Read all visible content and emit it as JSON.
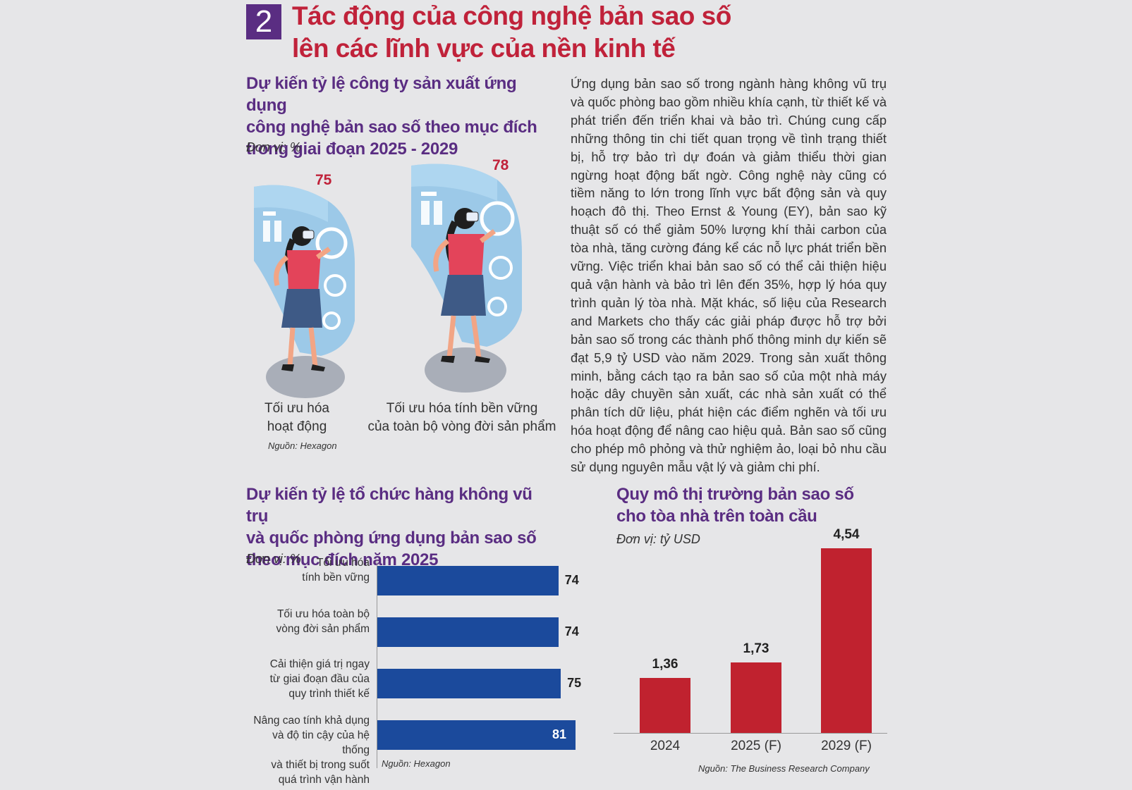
{
  "header": {
    "section_number": "2",
    "title": "Tác động của công nghệ bản sao số\nlên các lĩnh vực của nền kinh tế"
  },
  "figure_one": {
    "title": "Dự kiến tỷ lệ công ty sản xuất ứng dụng\ncông nghệ bản sao số theo mục đích\ntrong giai đoạn 2025 - 2029",
    "unit": "Đơn vị: %",
    "items": [
      {
        "value": "75",
        "label": "Tối ưu hóa\nhoạt động"
      },
      {
        "value": "78",
        "label": "Tối ưu hóa tính bền vững\ncủa toàn bộ vòng đời sản phẩm"
      }
    ],
    "source": "Nguồn: Hexagon"
  },
  "article": {
    "text": "Ứng dụng bản sao số trong ngành hàng không vũ trụ và quốc phòng bao gồm nhiều khía cạnh, từ thiết kế và phát triển đến triển khai và bảo trì. Chúng cung cấp những thông tin chi tiết quan trọng về tình trạng thiết bị, hỗ trợ bảo trì dự đoán và giảm thiểu thời gian ngừng hoạt động bất ngờ. Công nghệ này cũng có tiềm năng to lớn trong lĩnh vực bất động sản và quy hoạch đô thị. Theo Ernst & Young (EY), bản sao kỹ thuật số có thể giảm 50% lượng khí thải carbon của tòa nhà, tăng cường đáng kể các nỗ lực phát triển bền vững. Việc triển khai bản sao số có thể cải thiện hiệu quả vận hành và bảo trì lên đến 35%, hợp lý hóa quy trình quản lý tòa nhà. Mặt khác, số liệu của Research and Markets cho thấy các giải pháp được hỗ trợ bởi bản sao số trong các thành phố thông minh dự kiến sẽ đạt 5,9 tỷ USD vào năm 2029. Trong sản xuất thông minh, bằng cách tạo ra bản sao số của một nhà máy hoặc dây chuyền sản xuất, các nhà sản xuất có thể phân tích dữ liệu, phát hiện các điểm nghẽn và tối ưu hóa hoạt động để nâng cao hiệu quả. Bản sao số cũng cho phép mô phỏng và thử nghiệm ảo, loại bỏ nhu cầu sử dụng nguyên mẫu vật lý và giảm chi phí."
  },
  "colors": {
    "title_red": "#c0223a",
    "title_purple": "#5a2d82",
    "bar_blue": "#1b4a9c",
    "bar_red": "#c0222f",
    "background": "#e6e6e8"
  },
  "chart_data": [
    {
      "type": "bar",
      "orientation": "horizontal",
      "title": "Dự kiến tỷ lệ tổ chức hàng không vũ trụ\nvà quốc phòng ứng dụng bản sao số\ntheo mục đích năm 2025",
      "unit": "Đơn vị: %",
      "categories": [
        "Tối ưu hóa\ntính bền vững",
        "Tối ưu hóa toàn bộ\nvòng đời sản phẩm",
        "Cải thiện giá trị ngay\ntừ giai đoạn đầu của\nquy trình thiết kế",
        "Nâng cao tính khả dụng\nvà độ tin cậy của hệ thống\nvà thiết bị trong suốt\nquá trình vận hành"
      ],
      "values": [
        74,
        74,
        75,
        81
      ],
      "value_labels": [
        "74",
        "74",
        "75",
        "81"
      ],
      "source": "Nguồn: Hexagon"
    },
    {
      "type": "bar",
      "orientation": "vertical",
      "title": "Quy mô thị trường bản sao số\ncho tòa nhà trên toàn cầu",
      "unit": "Đơn vị: tỷ USD",
      "categories": [
        "2024",
        "2025 (F)",
        "2029 (F)"
      ],
      "values": [
        1.36,
        1.73,
        4.54
      ],
      "value_labels": [
        "1,36",
        "1,73",
        "4,54"
      ],
      "source": "Nguồn: The Business Research Company"
    }
  ]
}
